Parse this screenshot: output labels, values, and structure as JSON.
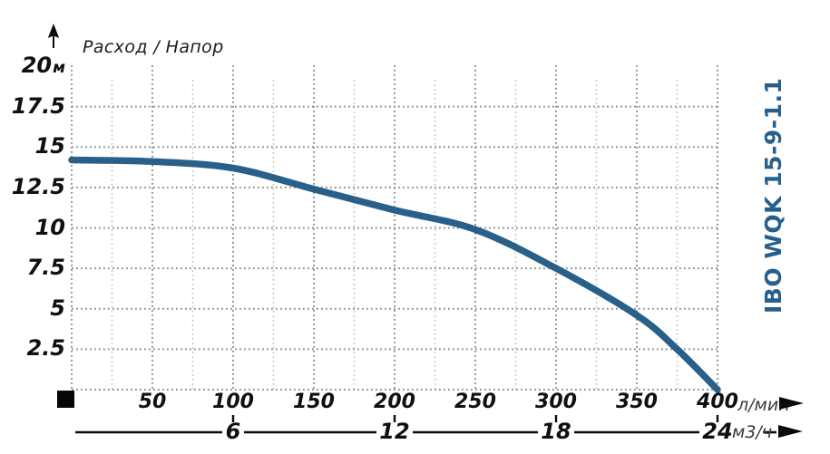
{
  "header": {
    "title": "Расход / Напор"
  },
  "side_label": "IBO WQK 15-9-1.1",
  "colors": {
    "curve": "#286089",
    "model_label": "#27608c",
    "grid_major": "#8f8f8f",
    "grid_minor": "#c3c3c3",
    "axis_line": "#0a0a0a",
    "text": "#101010"
  },
  "icons": {
    "y_axis_arrow": "arrow-up-icon",
    "x_axis_primary_arrow": "arrow-right-icon",
    "x_axis_secondary_arrow": "arrow-right-icon",
    "origin_marker": "black-square-icon"
  },
  "chart_data": {
    "type": "line",
    "title": "Расход / Напор",
    "series": [
      {
        "name": "IBO WQK 15-9-1.1",
        "x": [
          0,
          50,
          100,
          150,
          200,
          250,
          300,
          350,
          375,
          400
        ],
        "y": [
          14.2,
          14.1,
          13.7,
          12.4,
          11.1,
          9.9,
          7.5,
          4.6,
          2.5,
          0
        ]
      }
    ],
    "x_axis_primary": {
      "unit": "л/мин",
      "ticks": [
        50,
        100,
        150,
        200,
        250,
        300,
        350,
        400
      ],
      "range": [
        0,
        400
      ],
      "minor_step": 25
    },
    "x_axis_secondary": {
      "unit": "м3/ч",
      "ticks": [
        6,
        12,
        18,
        24
      ],
      "aligned_with_primary": [
        100,
        200,
        300,
        400
      ]
    },
    "y_axis": {
      "unit": "м",
      "ticks": [
        20,
        17.5,
        15,
        12.5,
        10,
        7.5,
        5,
        2.5
      ],
      "range": [
        0,
        20
      ],
      "gridline_values": [
        17.5,
        15,
        12.5,
        10,
        7.5,
        5,
        2.5,
        0
      ]
    },
    "grid": true,
    "legend_position": "right-rotated"
  }
}
